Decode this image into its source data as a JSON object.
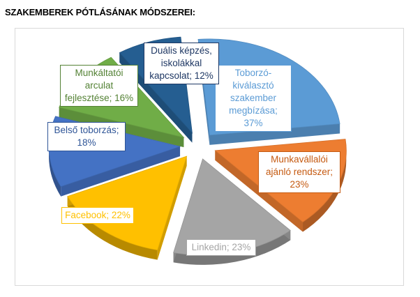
{
  "title": "SZAKEMBEREK PÓTLÁSÁNAK MÓDSZEREI:",
  "chart_data": {
    "type": "pie",
    "title": "SZAKEMBEREK PÓTLÁSÁNAK MÓDSZEREI:",
    "style": "3d-exploded",
    "slices": [
      {
        "label": "Toborzó-kiválasztó szakember megbízása",
        "value": 37,
        "display": "Toborzó-\nkiválasztó\nszakember\nmegbízása; 37%",
        "color": "#5B9BD5",
        "label_color": "#5B9BD5"
      },
      {
        "label": "Munkavállalói ajánló rendszer",
        "value": 23,
        "display": "Munkavállalói\najánló rendszer;\n23%",
        "color": "#ED7D31",
        "label_color": "#C55A11"
      },
      {
        "label": "Linkedin",
        "value": 23,
        "display": "Linkedin; 23%",
        "color": "#A5A5A5",
        "label_color": "#A5A5A5"
      },
      {
        "label": "Facebook",
        "value": 22,
        "display": "Facebook; 22%",
        "color": "#FFC000",
        "label_color": "#FFC000"
      },
      {
        "label": "Belső toborzás",
        "value": 18,
        "display": "Belső toborzás;\n18%",
        "color": "#4472C4",
        "label_color": "#2F5597"
      },
      {
        "label": "Munkáltatói arculat fejlesztése",
        "value": 16,
        "display": "Munkáltatói\narculat\nfejlesztése; 16%",
        "color": "#70AD47",
        "label_color": "#548235"
      },
      {
        "label": "Duális képzés, iskolákkal kapcsolat",
        "value": 12,
        "display": "Duális képzés,\niskolákkal\nkapcsolat; 12%",
        "color": "#255E91",
        "label_color": "#1F3864"
      }
    ]
  }
}
